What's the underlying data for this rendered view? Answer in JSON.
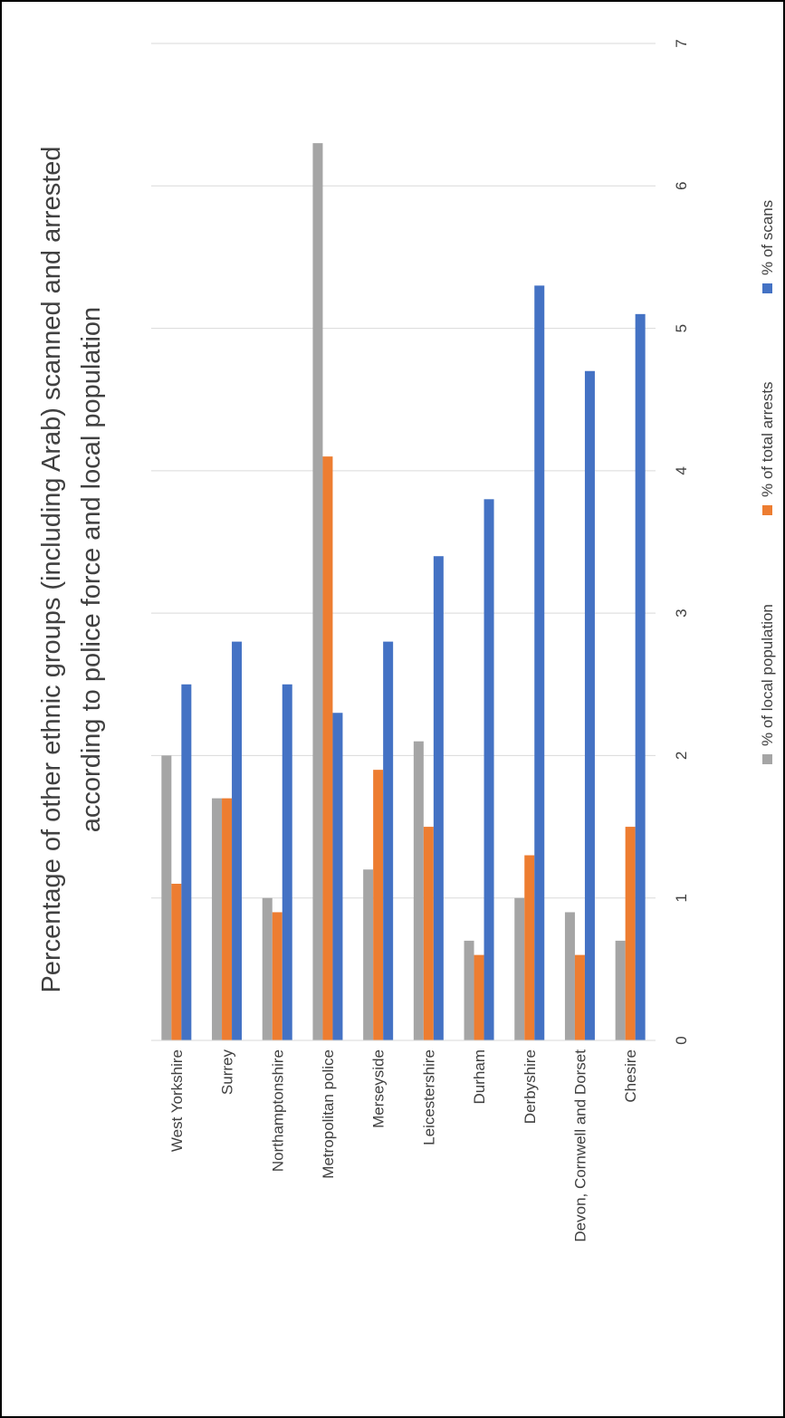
{
  "chart_data": {
    "type": "bar",
    "orientation": "horizontal",
    "title": "Percentage of other ethnic groups (including Arab) scanned and arrested according to police force and local population",
    "categories": [
      "West Yorkshire",
      "Surrey",
      "Northamptonshire",
      "Metropolitan police",
      "Merseyside",
      "Leicestershire",
      "Durham",
      "Derbyshire",
      "Devon, Cornwell and Dorset",
      "Chesire"
    ],
    "series": [
      {
        "name": "% of local population",
        "color": "#a5a5a5",
        "values": [
          2.0,
          1.7,
          1.0,
          6.3,
          1.2,
          2.1,
          0.7,
          1.0,
          0.9,
          0.7
        ]
      },
      {
        "name": "% of total arrests",
        "color": "#ed7d31",
        "values": [
          1.1,
          1.7,
          0.9,
          4.1,
          1.9,
          1.5,
          0.6,
          1.3,
          0.6,
          1.5
        ]
      },
      {
        "name": "% of scans",
        "color": "#4472c4",
        "values": [
          2.5,
          2.8,
          2.5,
          2.3,
          2.8,
          3.4,
          3.8,
          5.3,
          4.7,
          5.1
        ]
      }
    ],
    "ylim": [
      0,
      7
    ],
    "ticks": [
      "0",
      "1",
      "2",
      "3",
      "4",
      "5",
      "6",
      "7"
    ],
    "xlabel": "",
    "ylabel": "",
    "grid": true,
    "legend_position": "bottom"
  }
}
